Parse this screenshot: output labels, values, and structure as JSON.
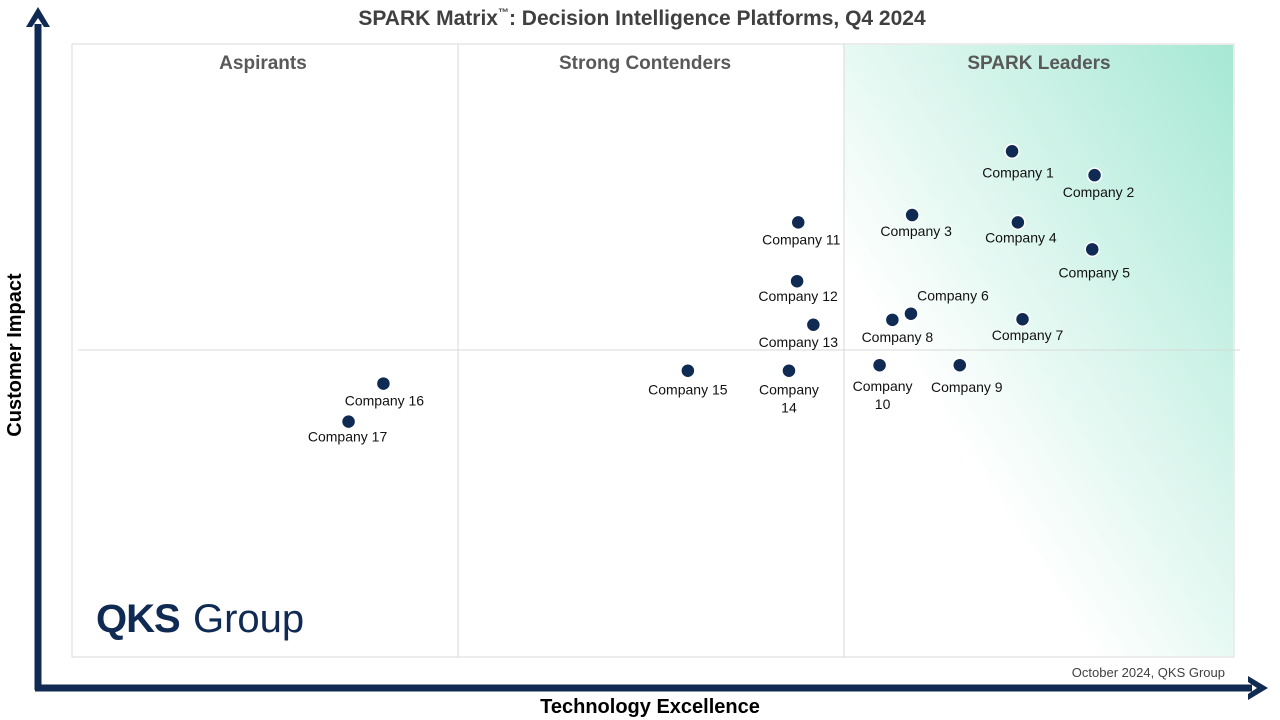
{
  "chart_data": {
    "type": "scatter",
    "title_main": "SPARK Matrix",
    "title_tm": "™",
    "title_rest": ": Decision Intelligence Platforms, Q4 2024",
    "xlabel": "Technology Excellence",
    "ylabel": "Customer Impact",
    "quadrants": [
      "Aspirants",
      "Strong Contenders",
      "SPARK Leaders"
    ],
    "source_note": "October 2024, QKS Group",
    "logo": {
      "bold": "QKS",
      "light": "Group"
    },
    "colors": {
      "marker": "#0f2a53",
      "axis": "#0f2a53",
      "leader_gradient": "#a6e8d4",
      "grid": "#d9d9d9"
    },
    "points": [
      {
        "name": "Company 1",
        "label_lines": [
          "Company 1"
        ],
        "x": 80.9,
        "y": 82.5
      },
      {
        "name": "Company 2",
        "label_lines": [
          "Company 2"
        ],
        "x": 88.0,
        "y": 78.6
      },
      {
        "name": "Company 3",
        "label_lines": [
          "Company 3"
        ],
        "x": 72.3,
        "y": 72.1
      },
      {
        "name": "Company 4",
        "label_lines": [
          "Company 4"
        ],
        "x": 81.4,
        "y": 70.9
      },
      {
        "name": "Company 5",
        "label_lines": [
          "Company 5"
        ],
        "x": 87.8,
        "y": 66.5
      },
      {
        "name": "Company 6",
        "label_lines": [
          "Company 6"
        ],
        "x": 72.2,
        "y": 56.0
      },
      {
        "name": "Company 7",
        "label_lines": [
          "Company 7"
        ],
        "x": 81.8,
        "y": 55.1
      },
      {
        "name": "Company 8",
        "label_lines": [
          "Company 8"
        ],
        "x": 70.6,
        "y": 55.0
      },
      {
        "name": "Company 9",
        "label_lines": [
          "Company 9"
        ],
        "x": 76.4,
        "y": 47.6
      },
      {
        "name": "Company 10",
        "label_lines": [
          "Company",
          "10"
        ],
        "x": 69.5,
        "y": 47.6
      },
      {
        "name": "Company 11",
        "label_lines": [
          "Company 11"
        ],
        "x": 62.5,
        "y": 70.9
      },
      {
        "name": "Company 12",
        "label_lines": [
          "Company 12"
        ],
        "x": 62.4,
        "y": 61.3
      },
      {
        "name": "Company 13",
        "label_lines": [
          "Company 13"
        ],
        "x": 63.8,
        "y": 54.2
      },
      {
        "name": "Company 14",
        "label_lines": [
          "Company",
          "14"
        ],
        "x": 61.7,
        "y": 46.7
      },
      {
        "name": "Company 15",
        "label_lines": [
          "Company 15"
        ],
        "x": 53.0,
        "y": 46.7
      },
      {
        "name": "Company 16",
        "label_lines": [
          "Company 16"
        ],
        "x": 26.8,
        "y": 44.6
      },
      {
        "name": "Company 17",
        "label_lines": [
          "Company 17"
        ],
        "x": 23.8,
        "y": 38.4
      }
    ]
  }
}
